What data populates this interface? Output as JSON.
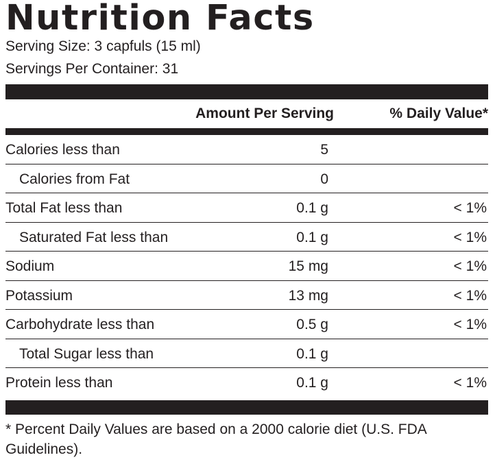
{
  "title": "Nutrition Facts",
  "serving_size": "Serving Size: 3 capfuls (15 ml)",
  "servings_per_container": "Servings Per Container: 31",
  "columns": {
    "amount": "Amount Per Serving",
    "daily_value": "% Daily Value*"
  },
  "nutrients": [
    {
      "name": "Calories less than",
      "amount": "5",
      "dv": ""
    },
    {
      "name": "Calories from Fat",
      "amount": "0",
      "dv": ""
    },
    {
      "name": "Total Fat less than",
      "amount": "0.1 g",
      "dv": "< 1%"
    },
    {
      "name": "Saturated Fat less than",
      "amount": "0.1 g",
      "dv": "< 1%"
    },
    {
      "name": "Sodium",
      "amount": "15 mg",
      "dv": "< 1%"
    },
    {
      "name": "Potassium",
      "amount": "13 mg",
      "dv": "< 1%"
    },
    {
      "name": "Carbohydrate less than",
      "amount": "0.5 g",
      "dv": "< 1%"
    },
    {
      "name": "Total Sugar less than",
      "amount": "0.1 g",
      "dv": ""
    },
    {
      "name": "Protein less than",
      "amount": "0.1 g",
      "dv": "< 1%"
    }
  ],
  "footnote": "* Percent Daily Values are based on a 2000 calorie diet (U.S. FDA Guidelines).",
  "colors": {
    "ink": "#231f20",
    "background": "#ffffff"
  }
}
